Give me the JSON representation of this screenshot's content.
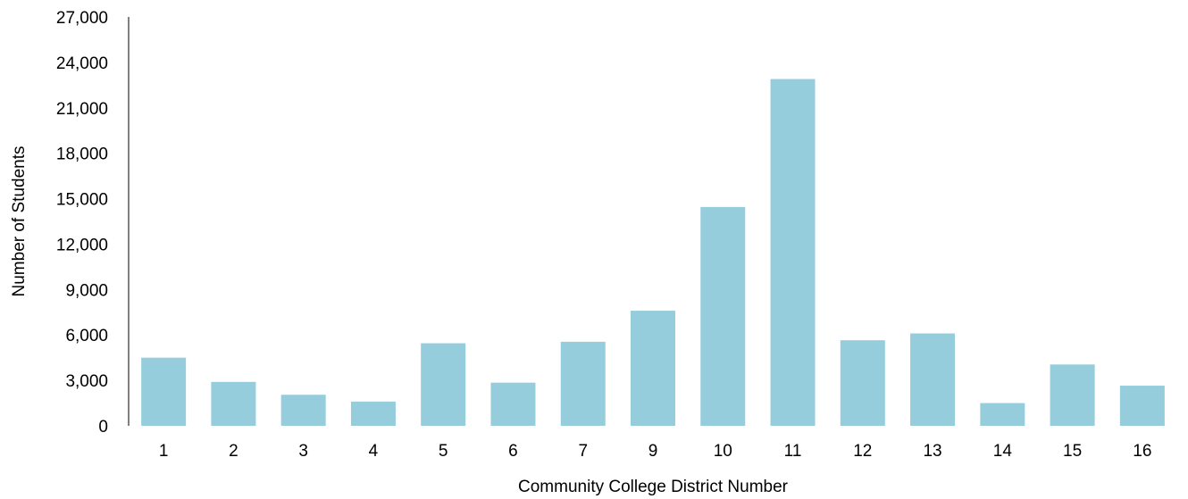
{
  "chart_data": {
    "type": "bar",
    "title": "",
    "xlabel": "Community College District Number",
    "ylabel": "Number of Students",
    "categories": [
      "1",
      "2",
      "3",
      "4",
      "5",
      "6",
      "7",
      "9",
      "10",
      "11",
      "12",
      "13",
      "14",
      "15",
      "16"
    ],
    "values": [
      4500,
      2900,
      2050,
      1600,
      5450,
      2850,
      5550,
      7600,
      14450,
      22900,
      5650,
      6100,
      1500,
      4050,
      2650
    ],
    "ylim": [
      0,
      27000
    ],
    "y_ticks": [
      "0",
      "3,000",
      "6,000",
      "9,000",
      "12,000",
      "15,000",
      "18,000",
      "21,000",
      "24,000",
      "27,000"
    ],
    "grid": false,
    "legend": "none",
    "bar_color": "#96cddc",
    "axis_color": "#000000"
  }
}
